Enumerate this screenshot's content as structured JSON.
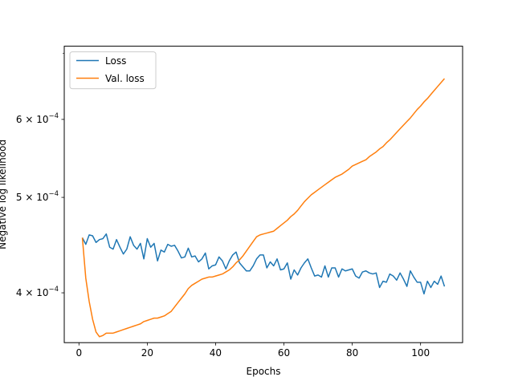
{
  "chart_data": {
    "type": "line",
    "title": "",
    "xlabel": "Epochs",
    "ylabel": "Negative log likelihood",
    "yscale": "log",
    "xlim": [
      -4.3,
      112.3
    ],
    "ylim": [
      0.000356,
      0.000712
    ],
    "grid": false,
    "legend_position": "top-left",
    "x_ticks": [
      0,
      20,
      40,
      60,
      80,
      100
    ],
    "y_ticks": [
      {
        "value": 0.0004,
        "base": "4 × 10",
        "exp": "−4"
      },
      {
        "value": 0.0005,
        "base": "5 × 10",
        "exp": "−4"
      },
      {
        "value": 0.0006,
        "base": "6 × 10",
        "exp": "−4"
      }
    ],
    "series": [
      {
        "name": "Loss",
        "color": "#1f77b4",
        "x_start": 1,
        "values": [
          0.000455,
          0.000448,
          0.000458,
          0.000457,
          0.00045,
          0.000453,
          0.000454,
          0.000459,
          0.000445,
          0.000443,
          0.000453,
          0.000445,
          0.000438,
          0.000443,
          0.000456,
          0.000447,
          0.000443,
          0.000449,
          0.000433,
          0.000454,
          0.000445,
          0.000449,
          0.000431,
          0.000442,
          0.00044,
          0.000448,
          0.000446,
          0.000447,
          0.000441,
          0.000434,
          0.000435,
          0.000444,
          0.000435,
          0.000436,
          0.00043,
          0.000433,
          0.000439,
          0.000423,
          0.000426,
          0.000427,
          0.000435,
          0.000431,
          0.000423,
          0.000431,
          0.000437,
          0.00044,
          0.000429,
          0.000425,
          0.000421,
          0.000421,
          0.000426,
          0.000433,
          0.000437,
          0.000437,
          0.000424,
          0.00043,
          0.000426,
          0.000433,
          0.000422,
          0.000423,
          0.000429,
          0.000413,
          0.000422,
          0.000417,
          0.000424,
          0.000429,
          0.000433,
          0.000424,
          0.000416,
          0.000417,
          0.000415,
          0.000426,
          0.000415,
          0.000424,
          0.000424,
          0.000415,
          0.000423,
          0.000421,
          0.000422,
          0.000423,
          0.000416,
          0.000414,
          0.00042,
          0.000421,
          0.000419,
          0.000418,
          0.000419,
          0.000405,
          0.000411,
          0.00041,
          0.000418,
          0.000416,
          0.000412,
          0.000419,
          0.000413,
          0.000406,
          0.000421,
          0.000415,
          0.00041,
          0.00041,
          0.000399,
          0.000411,
          0.000405,
          0.000411,
          0.000408,
          0.000416,
          0.000406
        ]
      },
      {
        "name": "Val. loss",
        "color": "#ff7f0e",
        "x_start": 1,
        "values": [
          0.000455,
          0.000414,
          0.000392,
          0.000376,
          0.000365,
          0.000361,
          0.000362,
          0.000364,
          0.000364,
          0.000364,
          0.000365,
          0.000366,
          0.000367,
          0.000368,
          0.000369,
          0.00037,
          0.000371,
          0.000372,
          0.000374,
          0.000375,
          0.000376,
          0.000377,
          0.000377,
          0.000378,
          0.000379,
          0.000381,
          0.000383,
          0.000387,
          0.000391,
          0.000395,
          0.000399,
          0.000404,
          0.000407,
          0.000409,
          0.000411,
          0.000413,
          0.000414,
          0.000415,
          0.000415,
          0.000416,
          0.000417,
          0.000418,
          0.00042,
          0.000422,
          0.000425,
          0.000429,
          0.000432,
          0.000436,
          0.000441,
          0.000446,
          0.000451,
          0.000456,
          0.000458,
          0.000459,
          0.00046,
          0.000461,
          0.000462,
          0.000465,
          0.000468,
          0.000471,
          0.000474,
          0.000478,
          0.000481,
          0.000485,
          0.00049,
          0.000495,
          0.000499,
          0.000503,
          0.000506,
          0.000509,
          0.000512,
          0.000515,
          0.000518,
          0.000521,
          0.000524,
          0.000526,
          0.000528,
          0.000531,
          0.000534,
          0.000538,
          0.00054,
          0.000542,
          0.000544,
          0.000546,
          0.00055,
          0.000553,
          0.000556,
          0.00056,
          0.000563,
          0.000568,
          0.000572,
          0.000577,
          0.000582,
          0.000587,
          0.000592,
          0.000597,
          0.000602,
          0.000608,
          0.000614,
          0.000619,
          0.000625,
          0.00063,
          0.000636,
          0.000642,
          0.000648,
          0.000654,
          0.00066
        ]
      }
    ]
  }
}
